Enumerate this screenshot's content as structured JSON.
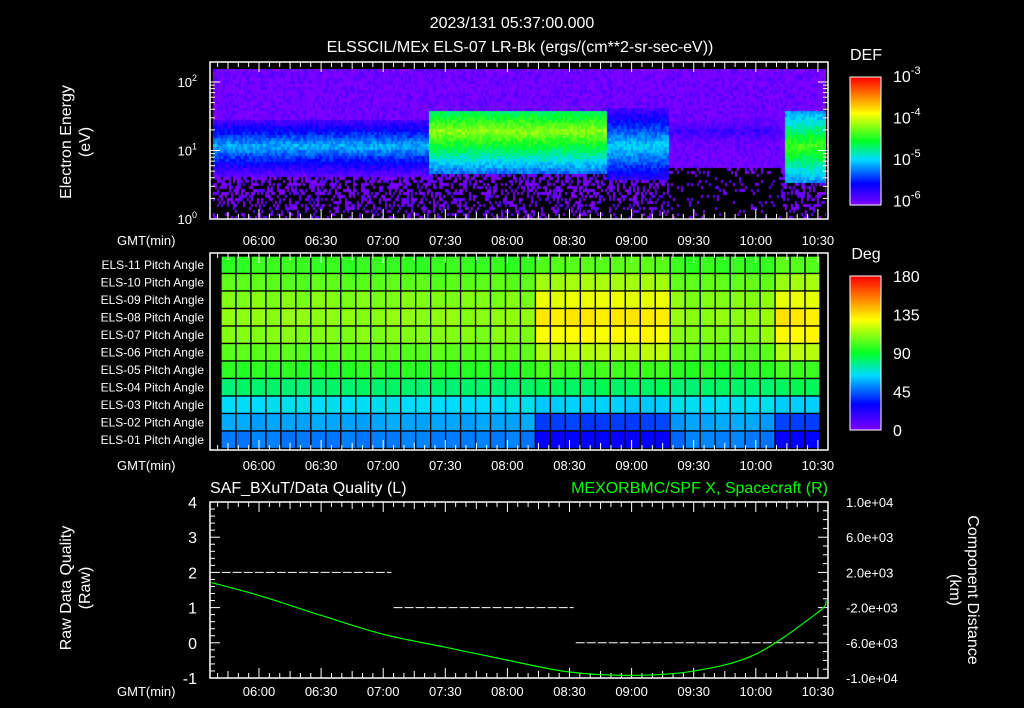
{
  "header": {
    "timestamp": "2023/131 05:37:00.000",
    "title": "ELSSCIL/MEx ELS-07 LR-Bk  (ergs/(cm**2-sr-sec-eV))"
  },
  "time_axis": {
    "label": "GMT(min)",
    "start": "05:37",
    "end": "10:34",
    "ticks": [
      "06:00",
      "06:30",
      "07:00",
      "07:30",
      "08:00",
      "08:30",
      "09:00",
      "09:30",
      "10:00",
      "10:30"
    ]
  },
  "chart_data": [
    {
      "type": "heatmap",
      "name": "electron-energy-spectrogram",
      "ylabel": "Electron Energy",
      "yunits": "(eV)",
      "yscale": "log",
      "ylim": [
        1,
        160
      ],
      "ytick_labels": [
        "10^0",
        "10^1",
        "10^2"
      ],
      "colorbar": {
        "title": "DEF",
        "scale": "log",
        "range": [
          1e-06,
          0.001
        ],
        "tick_labels": [
          "10^-3",
          "10^-4",
          "10^-5",
          "10^-6"
        ]
      },
      "background_log_def": -5.8,
      "features": [
        {
          "start": "05:37",
          "end": "07:22",
          "low_eV": 4.5,
          "high_eV": 28,
          "peak_log_def": -4.9,
          "peak_eV": 12
        },
        {
          "start": "07:22",
          "end": "08:48",
          "low_eV": 5,
          "high_eV": 40,
          "peak_log_def": -4.0,
          "peak_eV": 20
        },
        {
          "start": "08:48",
          "end": "09:18",
          "low_eV": 4,
          "high_eV": 45,
          "peak_log_def": -4.8,
          "peak_eV": 12
        },
        {
          "start": "09:18",
          "end": "10:12",
          "low_eV": 6,
          "high_eV": 60,
          "peak_log_def": -5.6,
          "peak_eV": 20
        },
        {
          "start": "10:14",
          "end": "10:34",
          "low_eV": 3.5,
          "high_eV": 40,
          "peak_log_def": -4.2,
          "peak_eV": 12
        }
      ]
    },
    {
      "type": "heatmap",
      "name": "pitch-angle",
      "rows": [
        "ELS-11 Pitch Angle",
        "ELS-10 Pitch Angle",
        "ELS-09 Pitch Angle",
        "ELS-08 Pitch Angle",
        "ELS-07 Pitch Angle",
        "ELS-06 Pitch Angle",
        "ELS-05 Pitch Angle",
        "ELS-04 Pitch Angle",
        "ELS-03 Pitch Angle",
        "ELS-02 Pitch Angle",
        "ELS-01 Pitch Angle"
      ],
      "colorbar": {
        "title": "Deg",
        "range": [
          0,
          180
        ],
        "tick_labels": [
          "180",
          "135",
          "90",
          "45",
          "0"
        ]
      },
      "quiet_deg": [
        98,
        104,
        110,
        112,
        110,
        104,
        96,
        82,
        66,
        56,
        50
      ],
      "active_deg": [
        104,
        115,
        126,
        134,
        130,
        118,
        100,
        84,
        62,
        40,
        30
      ],
      "active_intervals": [
        [
          "08:10",
          "09:20"
        ],
        [
          "10:05",
          "10:34"
        ]
      ]
    },
    {
      "type": "line",
      "name": "data-quality-and-position",
      "left_title": "SAF_BXuT/Data Quality (L)",
      "right_title": "MEXORBMC/SPF X, Spacecraft (R)",
      "ylabel_left": "Raw Data Quality",
      "yunits_left": "(Raw)",
      "ylabel_right": "Component Distance",
      "yunits_right": "(km)",
      "ylim_left": [
        -1,
        4
      ],
      "ytick_labels_left": [
        "4",
        "3",
        "2",
        "1",
        "0",
        "-1"
      ],
      "ylim_right": [
        -10000,
        10000
      ],
      "ytick_labels_right": [
        "1.0e+04",
        "6.0e+03",
        "2.0e+03",
        "-2.0e+03",
        "-6.0e+03",
        "-1.0e+04"
      ],
      "quality_segments": [
        {
          "start": "05:42",
          "end": "07:04",
          "value": 2
        },
        {
          "start": "07:05",
          "end": "08:32",
          "value": 1
        },
        {
          "start": "08:33",
          "end": "10:28",
          "value": 0
        }
      ],
      "position_km": {
        "times": [
          "05:37",
          "06:00",
          "06:30",
          "07:00",
          "07:30",
          "08:00",
          "08:30",
          "09:00",
          "09:30",
          "10:00",
          "10:30",
          "10:34"
        ],
        "values": [
          850,
          -620,
          -2880,
          -5030,
          -6500,
          -7970,
          -9320,
          -9700,
          -9210,
          -7290,
          -2540,
          -1190
        ]
      },
      "colors": {
        "quality": "#ffffff",
        "position": "#00ff00"
      }
    }
  ]
}
